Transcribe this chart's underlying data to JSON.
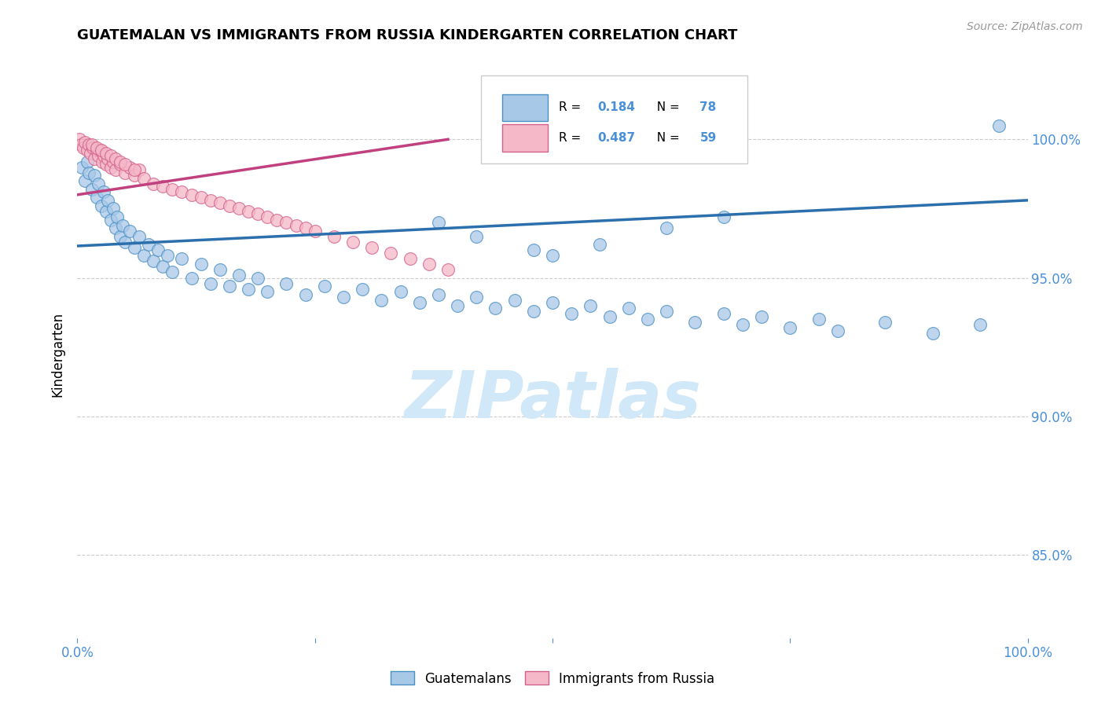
{
  "title": "GUATEMALAN VS IMMIGRANTS FROM RUSSIA KINDERGARTEN CORRELATION CHART",
  "source": "Source: ZipAtlas.com",
  "ylabel": "Kindergarten",
  "legend_blue_R": "0.184",
  "legend_blue_N": "78",
  "legend_pink_R": "0.487",
  "legend_pink_N": "59",
  "blue_fill": "#a8c8e8",
  "blue_edge": "#4a90c4",
  "pink_fill": "#f4b8c8",
  "pink_edge": "#d4608c",
  "blue_line": "#2c6fad",
  "pink_line": "#c04080",
  "watermark_color": "#d0e8f8",
  "axis_color": "#4a90d9",
  "grid_color": "#cccccc",
  "xlim": [
    0.0,
    1.0
  ],
  "ylim": [
    0.82,
    1.025
  ],
  "blue_x": [
    0.005,
    0.008,
    0.01,
    0.012,
    0.015,
    0.018,
    0.02,
    0.022,
    0.025,
    0.028,
    0.03,
    0.032,
    0.035,
    0.038,
    0.04,
    0.042,
    0.045,
    0.048,
    0.05,
    0.055,
    0.06,
    0.065,
    0.07,
    0.075,
    0.08,
    0.085,
    0.09,
    0.095,
    0.1,
    0.11,
    0.12,
    0.13,
    0.14,
    0.15,
    0.16,
    0.17,
    0.18,
    0.19,
    0.2,
    0.22,
    0.24,
    0.26,
    0.28,
    0.3,
    0.32,
    0.34,
    0.36,
    0.38,
    0.4,
    0.42,
    0.44,
    0.46,
    0.48,
    0.5,
    0.52,
    0.54,
    0.56,
    0.58,
    0.6,
    0.62,
    0.65,
    0.68,
    0.7,
    0.72,
    0.75,
    0.78,
    0.8,
    0.85,
    0.9,
    0.95,
    0.97,
    0.38,
    0.42,
    0.48,
    0.5,
    0.55,
    0.62,
    0.68
  ],
  "blue_y": [
    0.99,
    0.985,
    0.992,
    0.988,
    0.982,
    0.987,
    0.979,
    0.984,
    0.976,
    0.981,
    0.974,
    0.978,
    0.971,
    0.975,
    0.968,
    0.972,
    0.965,
    0.969,
    0.963,
    0.967,
    0.961,
    0.965,
    0.958,
    0.962,
    0.956,
    0.96,
    0.954,
    0.958,
    0.952,
    0.957,
    0.95,
    0.955,
    0.948,
    0.953,
    0.947,
    0.951,
    0.946,
    0.95,
    0.945,
    0.948,
    0.944,
    0.947,
    0.943,
    0.946,
    0.942,
    0.945,
    0.941,
    0.944,
    0.94,
    0.943,
    0.939,
    0.942,
    0.938,
    0.941,
    0.937,
    0.94,
    0.936,
    0.939,
    0.935,
    0.938,
    0.934,
    0.937,
    0.933,
    0.936,
    0.932,
    0.935,
    0.931,
    0.934,
    0.93,
    0.933,
    1.005,
    0.97,
    0.965,
    0.96,
    0.958,
    0.962,
    0.968,
    0.972
  ],
  "pink_x": [
    0.002,
    0.004,
    0.006,
    0.008,
    0.01,
    0.012,
    0.014,
    0.016,
    0.018,
    0.02,
    0.022,
    0.024,
    0.026,
    0.028,
    0.03,
    0.032,
    0.035,
    0.038,
    0.04,
    0.045,
    0.05,
    0.055,
    0.06,
    0.065,
    0.07,
    0.08,
    0.09,
    0.1,
    0.11,
    0.12,
    0.13,
    0.14,
    0.15,
    0.16,
    0.17,
    0.18,
    0.19,
    0.2,
    0.21,
    0.22,
    0.23,
    0.24,
    0.25,
    0.27,
    0.29,
    0.31,
    0.33,
    0.35,
    0.37,
    0.39,
    0.015,
    0.02,
    0.025,
    0.03,
    0.035,
    0.04,
    0.045,
    0.05,
    0.06
  ],
  "pink_y": [
    1.0,
    0.998,
    0.997,
    0.999,
    0.996,
    0.998,
    0.995,
    0.997,
    0.993,
    0.996,
    0.994,
    0.996,
    0.992,
    0.994,
    0.991,
    0.993,
    0.99,
    0.992,
    0.989,
    0.991,
    0.988,
    0.99,
    0.987,
    0.989,
    0.986,
    0.984,
    0.983,
    0.982,
    0.981,
    0.98,
    0.979,
    0.978,
    0.977,
    0.976,
    0.975,
    0.974,
    0.973,
    0.972,
    0.971,
    0.97,
    0.969,
    0.968,
    0.967,
    0.965,
    0.963,
    0.961,
    0.959,
    0.957,
    0.955,
    0.953,
    0.998,
    0.997,
    0.996,
    0.995,
    0.994,
    0.993,
    0.992,
    0.991,
    0.989
  ]
}
